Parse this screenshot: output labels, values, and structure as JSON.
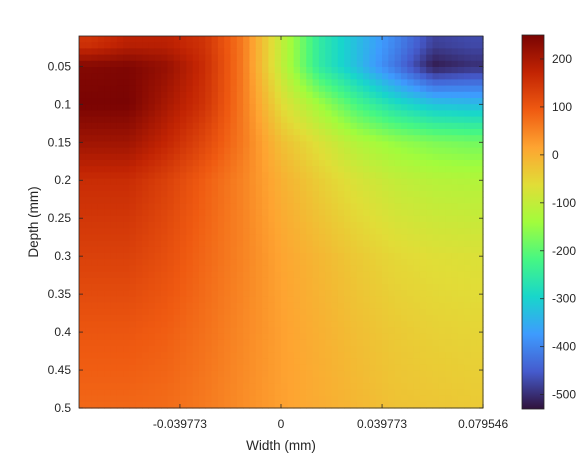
{
  "chart_data": {
    "type": "heatmap",
    "title": "",
    "xlabel": "Width (mm)",
    "ylabel": "Depth (mm)",
    "xlim": [
      -0.0795,
      0.0795
    ],
    "ylim": [
      0.5,
      0.01
    ],
    "x_ticks": [
      {
        "value": -0.039773,
        "label": "-0.039773"
      },
      {
        "value": 0,
        "label": "0"
      },
      {
        "value": 0.039773,
        "label": "0.039773"
      },
      {
        "value": 0.079546,
        "label": "0.079546"
      }
    ],
    "y_ticks": [
      {
        "value": 0.05,
        "label": "0.05"
      },
      {
        "value": 0.1,
        "label": "0.1"
      },
      {
        "value": 0.15,
        "label": "0.15"
      },
      {
        "value": 0.2,
        "label": "0.2"
      },
      {
        "value": 0.25,
        "label": "0.25"
      },
      {
        "value": 0.3,
        "label": "0.3"
      },
      {
        "value": 0.35,
        "label": "0.35"
      },
      {
        "value": 0.4,
        "label": "0.4"
      },
      {
        "value": 0.45,
        "label": "0.45"
      },
      {
        "value": 0.5,
        "label": "0.5"
      }
    ],
    "colorbar": {
      "colormap": "turbo",
      "clim": [
        -530,
        250
      ],
      "ticks": [
        {
          "value": 200,
          "label": "200"
        },
        {
          "value": 100,
          "label": "100"
        },
        {
          "value": 0,
          "label": "0"
        },
        {
          "value": -100,
          "label": "-100"
        },
        {
          "value": -200,
          "label": "-200"
        },
        {
          "value": -300,
          "label": "-300"
        },
        {
          "value": -400,
          "label": "-400"
        },
        {
          "value": -500,
          "label": "-500"
        }
      ]
    },
    "grid": false,
    "field": {
      "x": [
        -0.075,
        -0.06,
        -0.045,
        -0.03,
        -0.015,
        0,
        0.015,
        0.03,
        0.045,
        0.06,
        0.075
      ],
      "y": [
        0.02,
        0.05,
        0.1,
        0.15,
        0.2,
        0.3,
        0.4,
        0.5
      ],
      "values": [
        [
          150,
          180,
          180,
          150,
          60,
          -100,
          -250,
          -330,
          -400,
          -480,
          -470
        ],
        [
          240,
          245,
          220,
          160,
          60,
          -100,
          -250,
          -330,
          -420,
          -520,
          -500
        ],
        [
          250,
          250,
          200,
          150,
          60,
          -60,
          -140,
          -220,
          -280,
          -320,
          -330
        ],
        [
          210,
          210,
          170,
          120,
          60,
          -20,
          -70,
          -120,
          -150,
          -170,
          -180
        ],
        [
          160,
          160,
          130,
          90,
          50,
          0,
          -40,
          -75,
          -100,
          -115,
          -120
        ],
        [
          130,
          130,
          110,
          80,
          50,
          15,
          -10,
          -35,
          -55,
          -65,
          -70
        ],
        [
          100,
          100,
          90,
          70,
          45,
          20,
          0,
          -20,
          -35,
          -45,
          -50
        ],
        [
          80,
          80,
          75,
          60,
          40,
          20,
          5,
          -10,
          -25,
          -30,
          -35
        ]
      ]
    }
  }
}
